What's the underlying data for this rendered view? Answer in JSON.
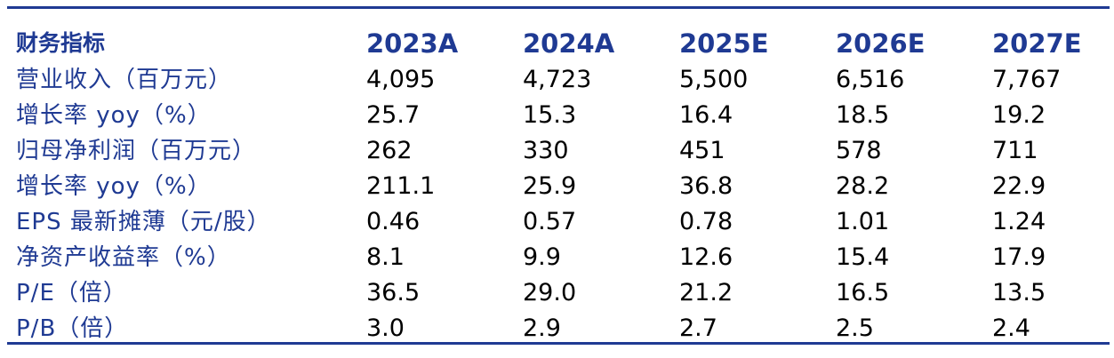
{
  "table": {
    "header_label": "财务指标",
    "years": [
      "2023A",
      "2024A",
      "2025E",
      "2026E",
      "2027E"
    ],
    "rows": [
      {
        "label": "营业收入（百万元）",
        "values": [
          "4,095",
          "4,723",
          "5,500",
          "6,516",
          "7,767"
        ]
      },
      {
        "label": "增长率 yoy（%）",
        "values": [
          "25.7",
          "15.3",
          "16.4",
          "18.5",
          "19.2"
        ]
      },
      {
        "label": "归母净利润（百万元）",
        "values": [
          "262",
          "330",
          "451",
          "578",
          "711"
        ]
      },
      {
        "label": "增长率 yoy（%）",
        "values": [
          "211.1",
          "25.9",
          "36.8",
          "28.2",
          "22.9"
        ]
      },
      {
        "label": "EPS 最新摊薄（元/股）",
        "values": [
          "0.46",
          "0.57",
          "0.78",
          "1.01",
          "1.24"
        ]
      },
      {
        "label": "净资产收益率（%）",
        "values": [
          "8.1",
          "9.9",
          "12.6",
          "15.4",
          "17.9"
        ]
      },
      {
        "label": "P/E（倍）",
        "values": [
          "36.5",
          "29.0",
          "21.2",
          "16.5",
          "13.5"
        ]
      },
      {
        "label": "P/B（倍）",
        "values": [
          "3.0",
          "2.9",
          "2.7",
          "2.5",
          "2.4"
        ]
      }
    ]
  },
  "colors": {
    "accent": "#1f3a93",
    "text": "#000000",
    "background": "#ffffff"
  }
}
